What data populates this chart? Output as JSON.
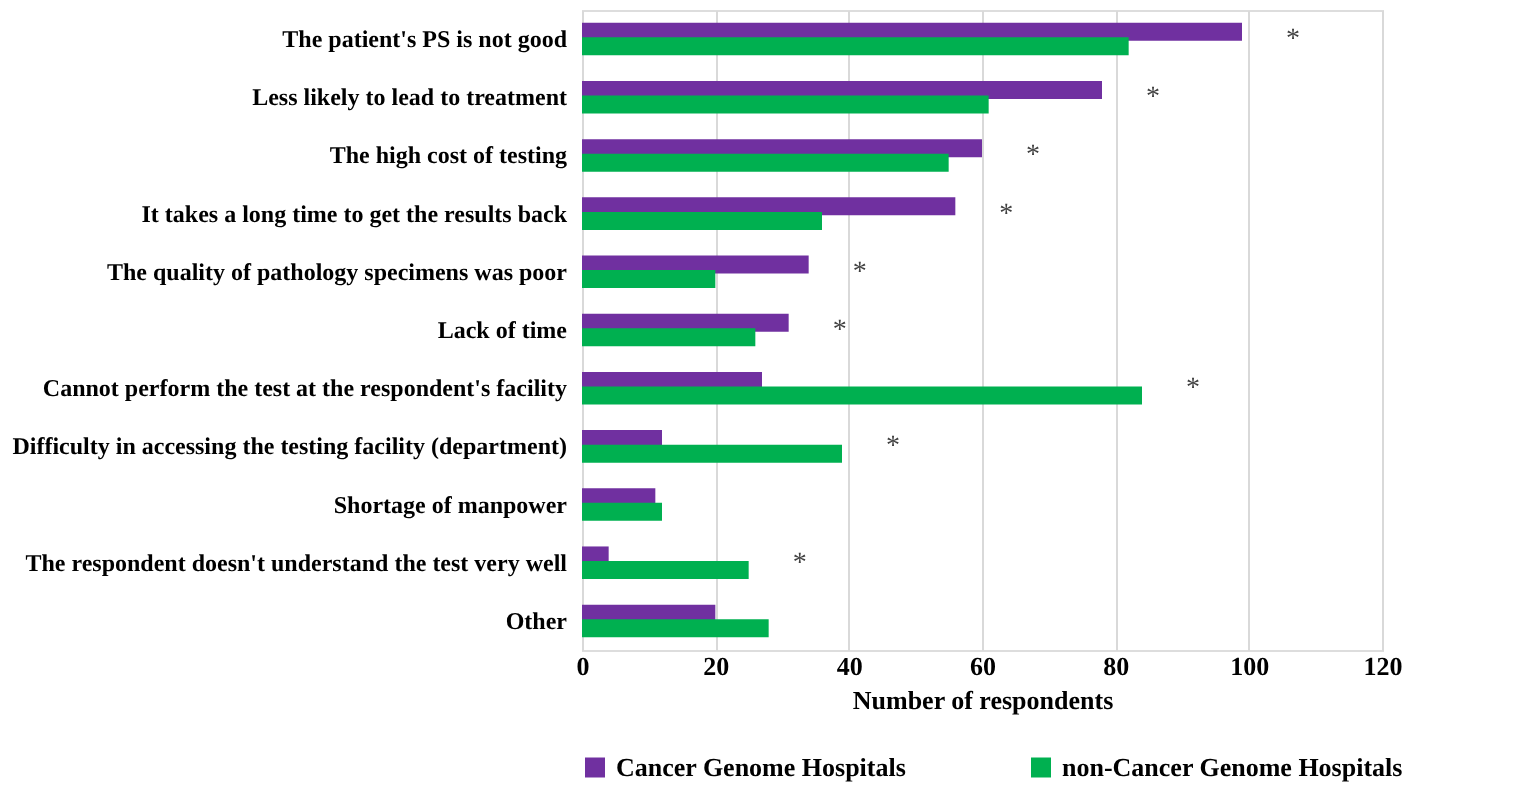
{
  "chart_data": {
    "type": "bar",
    "orientation": "horizontal",
    "categories": [
      "The patient's PS is not good",
      "Less likely to lead to treatment",
      "The high cost of testing",
      "It takes a long time to get the results back",
      "The quality of pathology specimens was poor",
      "Lack of time",
      "Cannot perform the test at the respondent's facility",
      "Difficulty in accessing the testing facility (department)",
      "Shortage of manpower",
      "The respondent doesn't understand the test very well",
      "Other"
    ],
    "series": [
      {
        "name": "Cancer Genome Hospitals",
        "color": "#7030a0",
        "values": [
          99,
          78,
          60,
          56,
          34,
          31,
          27,
          12,
          11,
          4,
          20
        ]
      },
      {
        "name": "non-Cancer Genome Hospitals",
        "color": "#00b050",
        "values": [
          82,
          61,
          55,
          36,
          20,
          26,
          84,
          39,
          12,
          25,
          28
        ]
      }
    ],
    "xlabel": "Number  of respondents",
    "xlim": [
      0,
      120
    ],
    "xticks": [
      0,
      20,
      40,
      60,
      80,
      100,
      120
    ],
    "grid": "x",
    "legend": "bottom",
    "annotations": [
      "*",
      "*",
      "*",
      "*",
      "*",
      "*",
      "*",
      "*",
      "*"
    ]
  }
}
